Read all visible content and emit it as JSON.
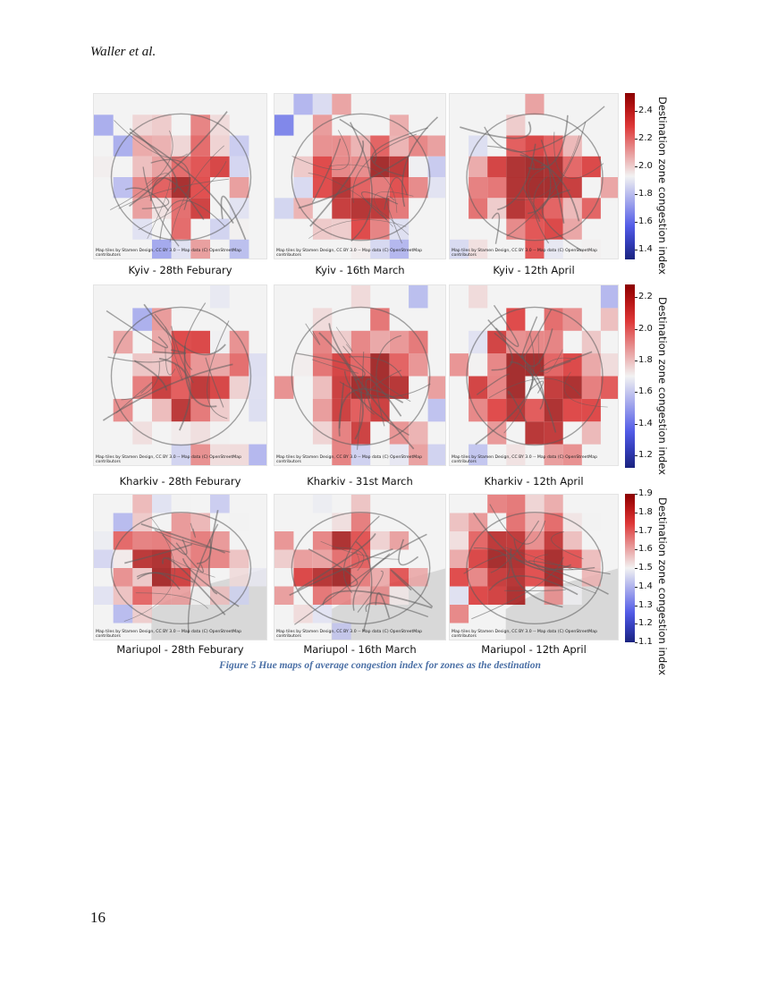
{
  "header": {
    "author": "Waller et al."
  },
  "page_number": "16",
  "figure": {
    "caption": "Figure 5 Hue maps of average congestion index for zones as the destination",
    "rows": [
      {
        "city": "Kyiv",
        "colorbar": {
          "label": "Destination zone congestion index",
          "ticks": [
            "2.4",
            "2.2",
            "2.0",
            "1.8",
            "1.6",
            "1.4"
          ],
          "min": 1.33,
          "max": 2.53,
          "low_color": "#1a237e",
          "mid_color": "#f2f2f2",
          "high_color": "#8b0000"
        },
        "maps": [
          {
            "title": "Kyiv - 28th Feburary",
            "attribution": "Map tiles by Stamen Design, CC BY 3.0 -- Map data (C) OpenStreetMap contributors"
          },
          {
            "title": "Kyiv - 16th March",
            "attribution": "Map tiles by Stamen Design, CC BY 3.0 -- Map data (C) OpenStreetMap contributors"
          },
          {
            "title": "Kyiv - 12th April",
            "attribution": "Map tiles by Stamen Design, CC BY 3.0 -- Map data (C) OpenStreetMap contributors"
          }
        ]
      },
      {
        "city": "Kharkiv",
        "colorbar": {
          "label": "Destination zone congestion index",
          "ticks": [
            "2.2",
            "2.0",
            "1.8",
            "1.6",
            "1.4",
            "1.2"
          ],
          "min": 1.12,
          "max": 2.28,
          "low_color": "#1a237e",
          "mid_color": "#f2f2f2",
          "high_color": "#8b0000"
        },
        "maps": [
          {
            "title": "Kharkiv - 28th Feburary",
            "attribution": "Map tiles by Stamen Design, CC BY 3.0 -- Map data (C) OpenStreetMap contributors"
          },
          {
            "title": "Kharkiv - 31st March",
            "attribution": "Map tiles by Stamen Design, CC BY 3.0 -- Map data (C) OpenStreetMap contributors"
          },
          {
            "title": "Kharkiv - 12th April",
            "attribution": "Map tiles by Stamen Design, CC BY 3.0 -- Map data (C) OpenStreetMap contributors"
          }
        ]
      },
      {
        "city": "Mariupol",
        "colorbar": {
          "label": "Destination zone congestion index",
          "ticks": [
            "1.9",
            "1.8",
            "1.7",
            "1.6",
            "1.5",
            "1.4",
            "1.3",
            "1.2",
            "1.1"
          ],
          "min": 1.1,
          "max": 1.9,
          "low_color": "#1a237e",
          "mid_color": "#f2f2f2",
          "high_color": "#8b0000"
        },
        "maps": [
          {
            "title": "Mariupol - 28th Feburary",
            "attribution": "Map tiles by Stamen Design, CC BY 3.0 -- Map data (C) OpenStreetMap contributors"
          },
          {
            "title": "Mariupol - 16th March",
            "attribution": "Map tiles by Stamen Design, CC BY 3.0 -- Map data (C) OpenStreetMap contributors"
          },
          {
            "title": "Mariupol - 12th April",
            "attribution": "Map tiles by Stamen Design, CC BY 3.0 -- Map data (C) OpenStreetMap contributors"
          }
        ]
      }
    ]
  }
}
